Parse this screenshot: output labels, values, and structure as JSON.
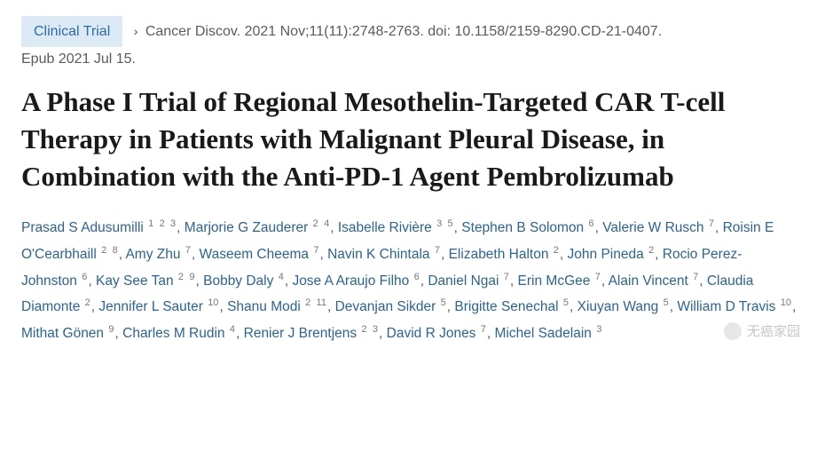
{
  "badge": {
    "label": "Clinical Trial"
  },
  "citation": {
    "journal": "Cancer Discov.",
    "details": " 2021 Nov;11(11):2748-2763. doi: 10.1158/2159-8290.CD-21-0407.",
    "epub": "Epub 2021 Jul 15."
  },
  "title": "A Phase I Trial of Regional Mesothelin-Targeted CAR T-cell Therapy in Patients with Malignant Pleural Disease, in Combination with the Anti-PD-1 Agent Pembrolizumab",
  "authors": [
    {
      "name": "Prasad S Adusumilli",
      "aff": [
        "1",
        "2",
        "3"
      ]
    },
    {
      "name": "Marjorie G Zauderer",
      "aff": [
        "2",
        "4"
      ]
    },
    {
      "name": "Isabelle Rivière",
      "aff": [
        "3",
        "5"
      ]
    },
    {
      "name": "Stephen B Solomon",
      "aff": [
        "6"
      ]
    },
    {
      "name": "Valerie W Rusch",
      "aff": [
        "7"
      ]
    },
    {
      "name": "Roisin E O'Cearbhaill",
      "aff": [
        "2",
        "8"
      ]
    },
    {
      "name": "Amy Zhu",
      "aff": [
        "7"
      ]
    },
    {
      "name": "Waseem Cheema",
      "aff": [
        "7"
      ]
    },
    {
      "name": "Navin K Chintala",
      "aff": [
        "7"
      ]
    },
    {
      "name": "Elizabeth Halton",
      "aff": [
        "2"
      ]
    },
    {
      "name": "John Pineda",
      "aff": [
        "2"
      ]
    },
    {
      "name": "Rocio Perez-Johnston",
      "aff": [
        "6"
      ]
    },
    {
      "name": "Kay See Tan",
      "aff": [
        "2",
        "9"
      ]
    },
    {
      "name": "Bobby Daly",
      "aff": [
        "4"
      ]
    },
    {
      "name": "Jose A Araujo Filho",
      "aff": [
        "6"
      ]
    },
    {
      "name": "Daniel Ngai",
      "aff": [
        "7"
      ]
    },
    {
      "name": "Erin McGee",
      "aff": [
        "7"
      ]
    },
    {
      "name": "Alain Vincent",
      "aff": [
        "7"
      ]
    },
    {
      "name": "Claudia Diamonte",
      "aff": [
        "2"
      ]
    },
    {
      "name": "Jennifer L Sauter",
      "aff": [
        "10"
      ]
    },
    {
      "name": "Shanu Modi",
      "aff": [
        "2",
        "11"
      ]
    },
    {
      "name": "Devanjan Sikder",
      "aff": [
        "5"
      ]
    },
    {
      "name": "Brigitte Senechal",
      "aff": [
        "5"
      ]
    },
    {
      "name": "Xiuyan Wang",
      "aff": [
        "5"
      ]
    },
    {
      "name": "William D Travis",
      "aff": [
        "10"
      ]
    },
    {
      "name": "Mithat Gönen",
      "aff": [
        "9"
      ]
    },
    {
      "name": "Charles M Rudin",
      "aff": [
        "4"
      ]
    },
    {
      "name": "Renier J Brentjens",
      "aff": [
        "2",
        "3"
      ]
    },
    {
      "name": "David R Jones",
      "aff": [
        "7"
      ]
    },
    {
      "name": "Michel Sadelain",
      "aff": [
        "3"
      ]
    }
  ],
  "watermark": "无癌家园",
  "colors": {
    "badge_bg": "#dceaf5",
    "badge_text": "#2e6da4",
    "author_link": "#2a6496",
    "body_text": "#5b5b5b",
    "title_text": "#1a1a1a",
    "background": "#ffffff"
  },
  "typography": {
    "title_fontsize": 31,
    "body_fontsize": 16,
    "author_fontsize": 15.5,
    "aff_fontsize": 11
  }
}
